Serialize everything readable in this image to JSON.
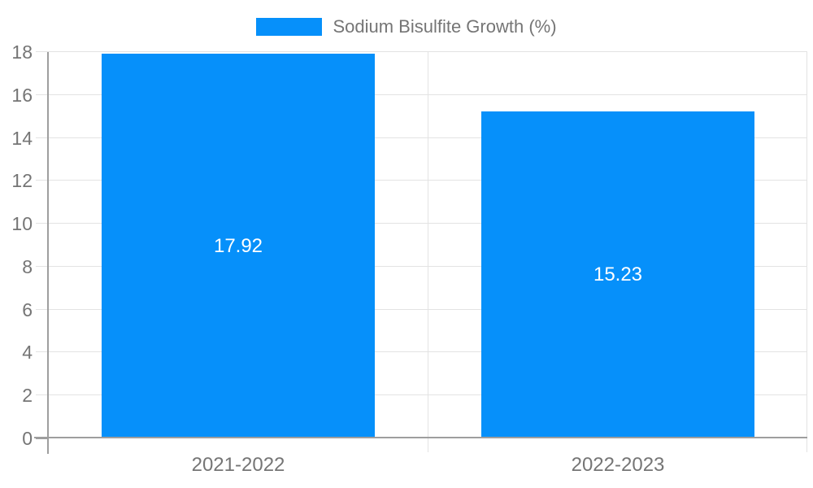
{
  "chart_data": {
    "type": "bar",
    "legend": {
      "position": "top",
      "items": [
        {
          "label": "Sodium Bisulfite Growth (%)",
          "color": "#0690fa"
        }
      ]
    },
    "categories": [
      "2021-2022",
      "2022-2023"
    ],
    "series": [
      {
        "name": "Sodium Bisulfite Growth (%)",
        "color": "#0690fa",
        "values": [
          17.92,
          15.23
        ],
        "data_labels": [
          "17.92",
          "15.23"
        ]
      }
    ],
    "xlabel": "",
    "ylabel": "",
    "ylim": [
      0,
      18
    ],
    "yticks": [
      "0",
      "2",
      "4",
      "6",
      "8",
      "10",
      "12",
      "14",
      "16",
      "18"
    ],
    "grid": true
  },
  "colors": {
    "background": "#ffffff",
    "bar": "#0690fa",
    "data_label_text": "#ffffff",
    "tick_label_text": "#757575",
    "legend_text": "#757575",
    "gridline": "#e3e3e3",
    "axis_line": "#9e9e9e"
  }
}
